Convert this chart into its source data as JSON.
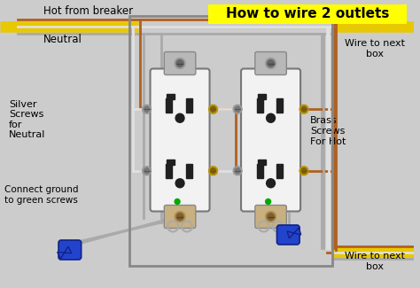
{
  "bg_color": "#cccccc",
  "title": "How to wire 2 outlets",
  "title_bg": "#ffff00",
  "title_color": "#000000",
  "title_fontsize": 11,
  "label_hot": "Hot from breaker",
  "label_neutral": "Neutral",
  "label_silver": "Silver\nScrews\nfor\nNeutral",
  "label_brass": "Brass\nScrews\nFor Hot",
  "label_ground": "Connect ground\nto green screws",
  "label_wire_next_top": "Wire to next\nbox",
  "label_wire_next_bot": "Wire to next\nbox",
  "hot_color": "#b06020",
  "neutral_color": "#e0e0e0",
  "ground_color": "#aaaaaa",
  "black_color": "#202020",
  "yellow_color": "#e8c800",
  "outlet_body": "#f2f2f2",
  "outlet_tab_color": "#b0b0b0",
  "screw_silver": "#999999",
  "screw_brass": "#b8960a",
  "green_color": "#00aa00",
  "blue_connector": "#2244cc",
  "box_border": "#888888"
}
